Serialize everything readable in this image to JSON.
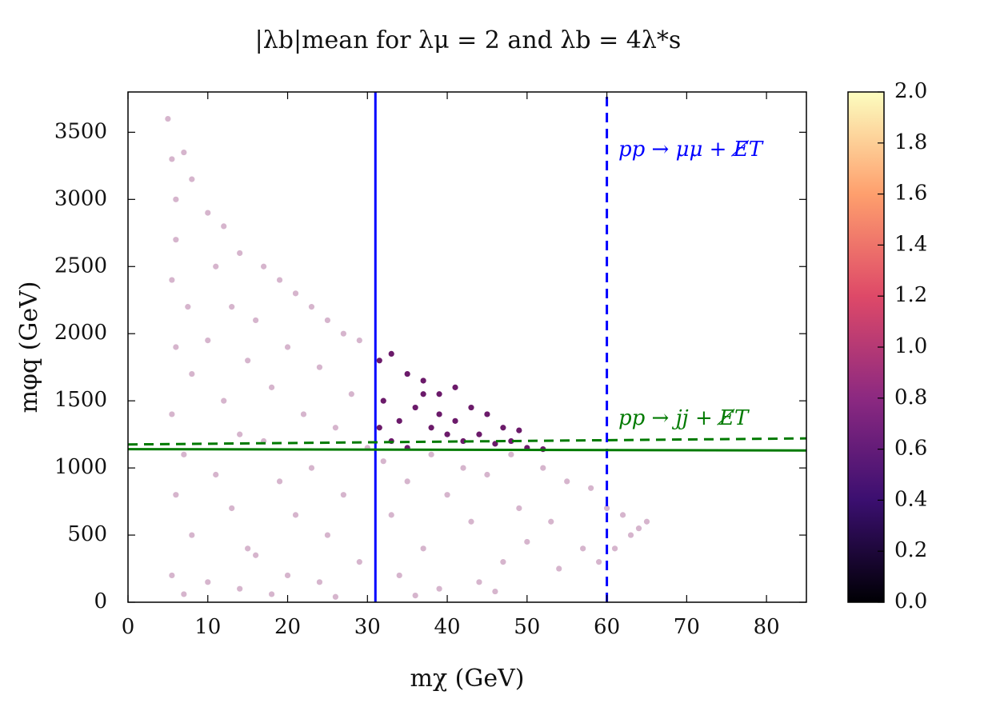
{
  "chart_data": {
    "type": "scatter",
    "title": "|λb|mean for λμ = 2 and λb = 4λ*s",
    "x_label": "mχ (GeV)",
    "y_label": "mφq (GeV)",
    "xlim": [
      0,
      85
    ],
    "xticks": [
      0,
      10,
      20,
      30,
      40,
      50,
      60,
      70,
      80
    ],
    "ylim": [
      0,
      3800
    ],
    "yticks": [
      0,
      500,
      1000,
      1500,
      2000,
      2500,
      3000,
      3500
    ],
    "series": [
      {
        "color": "#d6b5cd",
        "x": [
          5,
          5.5,
          6,
          7,
          8,
          6,
          5.5,
          7.5,
          6,
          8,
          5.5,
          7,
          6,
          8,
          5.5,
          7,
          10,
          12,
          11,
          14,
          13,
          10,
          15,
          12,
          14,
          11,
          13,
          15,
          10,
          14,
          17,
          19,
          21,
          16,
          20,
          18,
          22,
          17,
          19,
          21,
          16,
          20,
          18,
          23,
          25,
          27,
          29,
          24,
          28,
          26,
          30,
          23,
          27,
          25,
          29,
          24,
          26,
          32,
          35,
          38,
          33,
          37,
          34,
          39,
          36,
          40,
          42,
          45,
          48,
          43,
          47,
          44,
          49,
          50,
          46,
          52,
          55,
          58,
          53,
          57,
          54,
          60,
          62,
          63,
          65,
          59,
          61,
          64
        ],
        "values": [
          3600,
          3300,
          3000,
          3350,
          3150,
          2700,
          2400,
          2200,
          1900,
          1700,
          1400,
          1100,
          800,
          500,
          200,
          60,
          2900,
          2800,
          2500,
          2600,
          2200,
          1950,
          1800,
          1500,
          1250,
          950,
          700,
          400,
          150,
          100,
          2500,
          2400,
          2300,
          2100,
          1900,
          1600,
          1400,
          1200,
          900,
          650,
          350,
          200,
          60,
          2200,
          2100,
          2000,
          1950,
          1750,
          1550,
          1300,
          1150,
          1000,
          800,
          500,
          300,
          150,
          40,
          1050,
          900,
          1100,
          650,
          400,
          200,
          100,
          50,
          800,
          1000,
          950,
          1100,
          600,
          300,
          150,
          700,
          450,
          80,
          1000,
          900,
          850,
          600,
          400,
          250,
          700,
          650,
          500,
          600,
          300,
          400,
          550
        ]
      },
      {
        "color": "#6b1a6a",
        "x": [
          31.5,
          33,
          35,
          37,
          39,
          41,
          43,
          45,
          47,
          49,
          32,
          34,
          36,
          38,
          40,
          42,
          44,
          46,
          48,
          50,
          52,
          33,
          35,
          37,
          39,
          31.5,
          41
        ],
        "values": [
          1800,
          1850,
          1700,
          1650,
          1550,
          1600,
          1450,
          1400,
          1300,
          1280,
          1500,
          1350,
          1450,
          1300,
          1250,
          1200,
          1250,
          1180,
          1200,
          1150,
          1140,
          1200,
          1150,
          1550,
          1400,
          1300,
          1350
        ]
      }
    ],
    "lines": [
      {
        "x": [
          31,
          31
        ],
        "y": [
          0,
          3800
        ],
        "color": "#0000ff",
        "dashed": false
      },
      {
        "x": [
          60,
          60
        ],
        "y": [
          0,
          3800
        ],
        "color": "#0000ff",
        "dashed": true
      },
      {
        "x": [
          0,
          85
        ],
        "y": [
          1140,
          1130
        ],
        "color": "#007a00",
        "dashed": false
      },
      {
        "x": [
          0,
          85
        ],
        "y": [
          1175,
          1220
        ],
        "color": "#007a00",
        "dashed": true
      }
    ],
    "annotations": [
      "pp → μμ + E̸T",
      "pp → jj + E̸T"
    ],
    "colorbar": {
      "lim": [
        0,
        2
      ],
      "ticks": [
        {
          "value": 0,
          "label": "0.0"
        },
        {
          "value": 0.2,
          "label": "0.2"
        },
        {
          "value": 0.4,
          "label": "0.4"
        },
        {
          "value": 0.6,
          "label": "0.6"
        },
        {
          "value": 0.8,
          "label": "0.8"
        },
        {
          "value": 1,
          "label": "1.0"
        },
        {
          "value": 1.2,
          "label": "1.2"
        },
        {
          "value": 1.4,
          "label": "1.4"
        },
        {
          "value": 1.6,
          "label": "1.6"
        },
        {
          "value": 1.8,
          "label": "1.8"
        },
        {
          "value": 2,
          "label": "2.0"
        }
      ]
    }
  }
}
